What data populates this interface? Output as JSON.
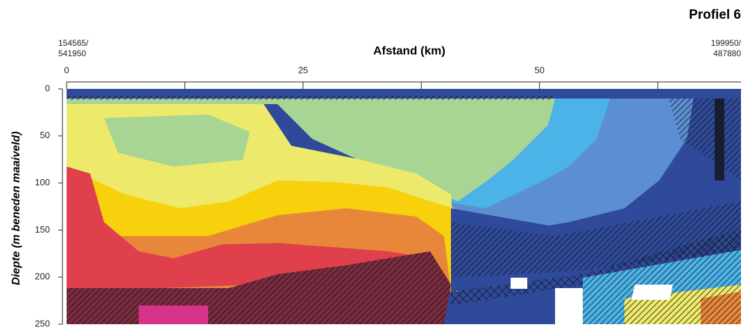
{
  "chart_data": {
    "type": "profile",
    "title": "Profiel 6",
    "x_label": "Afstand (km)",
    "y_label": "Diepte (m beneden maaiveld)",
    "start_label": [
      "154565/",
      "541950"
    ],
    "end_label": [
      "199950/",
      "487880"
    ],
    "xlim": [
      0,
      71.3
    ],
    "xticks": [
      0,
      25,
      50
    ],
    "xticks_minor": [
      12.5,
      37.5,
      62.5
    ],
    "ylim": [
      0,
      250
    ],
    "yticks": [
      0,
      50,
      100,
      150,
      200,
      250
    ]
  }
}
